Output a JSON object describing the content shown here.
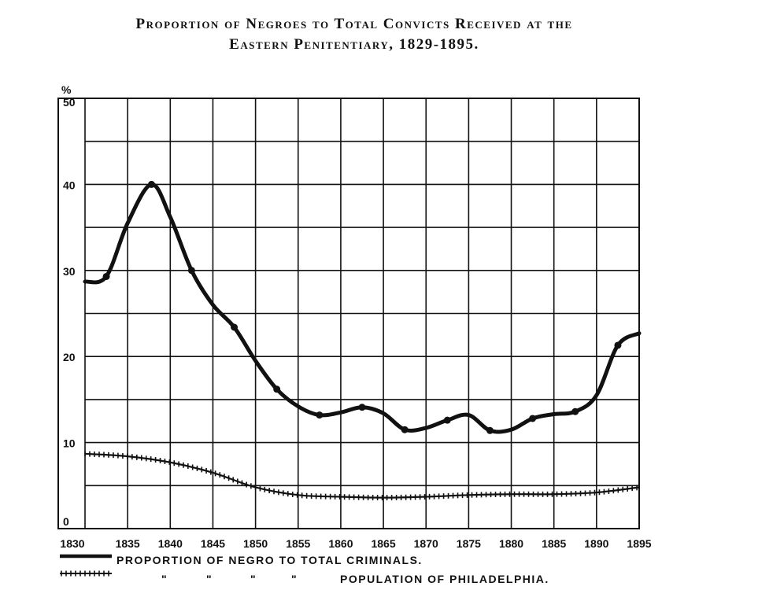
{
  "title_line1": "Proportion of Negroes to Total Convicts Received at the",
  "title_line2": "Eastern Penitentiary, 1829-1895.",
  "chart_data": {
    "type": "line",
    "title": "Proportion of Negroes to Total Convicts Received at the Eastern Penitentiary, 1829-1895.",
    "y_unit_label": "%",
    "xlim": [
      1830,
      1895
    ],
    "ylim": [
      0,
      50
    ],
    "x_ticks": [
      1830,
      1835,
      1840,
      1845,
      1850,
      1855,
      1860,
      1865,
      1870,
      1875,
      1880,
      1885,
      1890,
      1895
    ],
    "x_tick_labels": [
      "1830",
      "1835",
      "1840",
      "1845",
      "1850",
      "1855",
      "1860",
      "1865",
      "1870",
      "1875",
      "1880",
      "1885",
      "1890",
      "1895"
    ],
    "y_ticks": [
      0,
      10,
      20,
      30,
      40,
      50
    ],
    "y_tick_labels": [
      "0",
      "10",
      "20",
      "30",
      "40",
      "50"
    ],
    "grid": true,
    "series": [
      {
        "name": "Proportion of negro to total criminals.",
        "style": "solid-thick",
        "x": [
          1830,
          1832.5,
          1835,
          1837.8,
          1840,
          1842.5,
          1845,
          1847.5,
          1850,
          1852.5,
          1855,
          1857.5,
          1860,
          1862.5,
          1865,
          1867.5,
          1870,
          1872.5,
          1875,
          1877.5,
          1880,
          1882.5,
          1885,
          1887.5,
          1890,
          1892.5,
          1895
        ],
        "y": [
          28.7,
          29.3,
          35.5,
          40,
          36.2,
          30,
          26,
          23.4,
          19.5,
          16.2,
          14.2,
          13.2,
          13.5,
          14.1,
          13.4,
          11.5,
          11.7,
          12.6,
          13.2,
          11.4,
          11.5,
          12.8,
          13.3,
          13.6,
          15.5,
          21.3,
          22.7
        ]
      },
      {
        "name": "\" \" \" \" Population of Philadelphia.",
        "style": "hatched",
        "x": [
          1830,
          1835,
          1840,
          1845,
          1850,
          1855,
          1860,
          1865,
          1870,
          1875,
          1880,
          1885,
          1890,
          1895
        ],
        "y": [
          8.7,
          8.4,
          7.7,
          6.5,
          4.8,
          3.9,
          3.7,
          3.6,
          3.7,
          3.9,
          4,
          4,
          4.2,
          4.8
        ]
      }
    ]
  }
}
